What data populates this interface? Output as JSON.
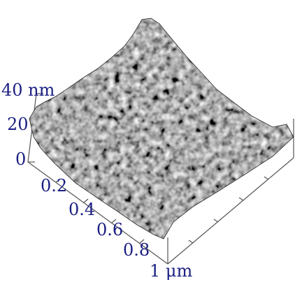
{
  "z_axis": {
    "ticks": [
      "0",
      "20",
      "40 nm"
    ]
  },
  "xy_axis": {
    "ticks": [
      "0.2",
      "0.4",
      "0.6",
      "0.8",
      "1 μm"
    ]
  },
  "colors": {
    "label": "#1b1f82",
    "axis_line": "#555555",
    "surface_dark": "#1e1e1e",
    "surface_light": "#f2f2f2"
  }
}
